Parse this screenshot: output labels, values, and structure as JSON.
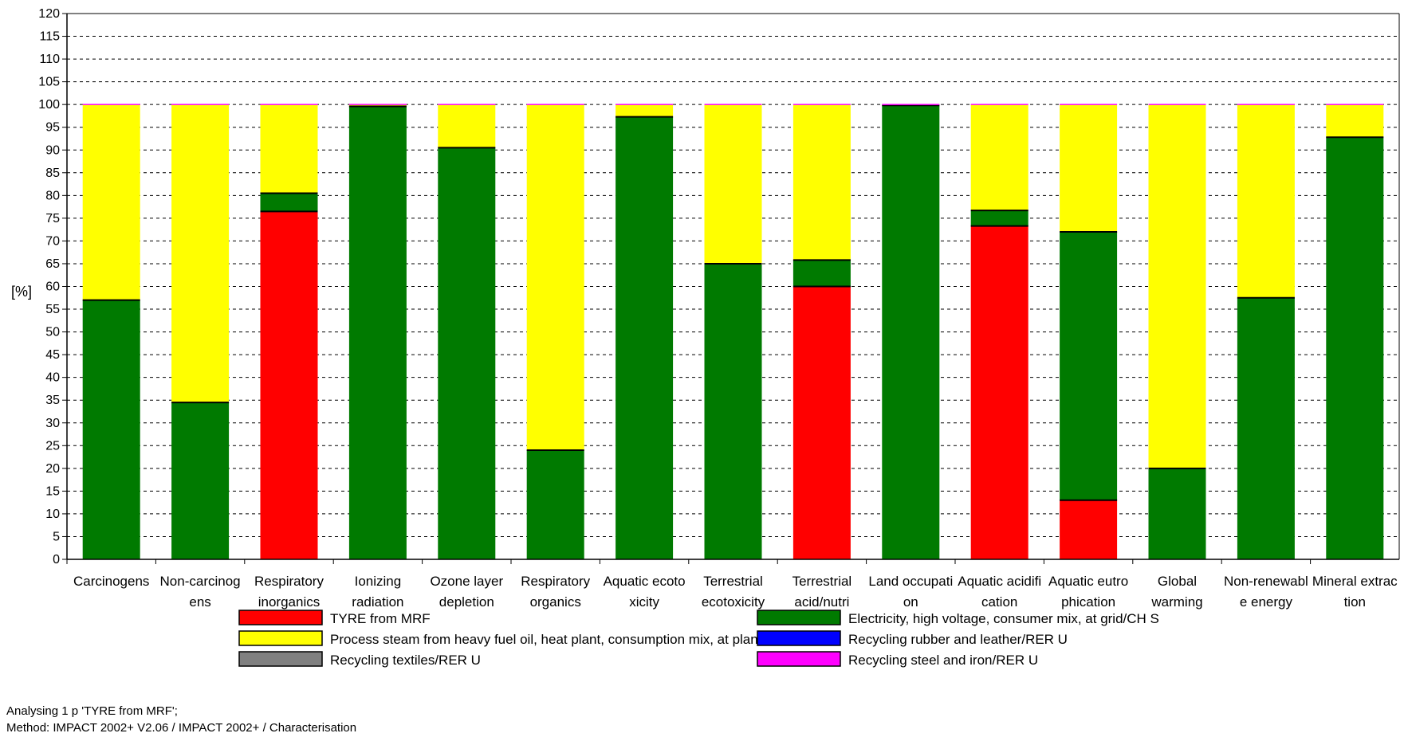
{
  "chart_data": {
    "type": "bar",
    "stacked": true,
    "ylabel": "[%]",
    "ylim": [
      0,
      120
    ],
    "ytick_step": 5,
    "grid": true,
    "legend_placement": "bottom",
    "categories": [
      [
        "Carcinogens",
        ""
      ],
      [
        "Non-carcinog",
        "ens"
      ],
      [
        "Respiratory",
        "inorganics"
      ],
      [
        "Ionizing",
        "radiation"
      ],
      [
        "Ozone layer",
        "depletion"
      ],
      [
        "Respiratory",
        "organics"
      ],
      [
        "Aquatic ecoto",
        "xicity"
      ],
      [
        "Terrestrial",
        "ecotoxicity"
      ],
      [
        "Terrestrial",
        "acid/nutri"
      ],
      [
        "Land occupati",
        "on"
      ],
      [
        "Aquatic acidifi",
        "cation"
      ],
      [
        "Aquatic eutro",
        "phication"
      ],
      [
        "Global",
        "warming"
      ],
      [
        "Non-renewabl",
        "e energy"
      ],
      [
        "Mineral extrac",
        "tion"
      ]
    ],
    "series": [
      {
        "name": "TYRE from MRF",
        "color": "#ff0000",
        "values": [
          0,
          0,
          76.5,
          0,
          0,
          0,
          0,
          0,
          60,
          0,
          73.3,
          13,
          0,
          0,
          0
        ]
      },
      {
        "name": "Electricity, high voltage, consumer mix, at grid/CH S",
        "color": "#007a00",
        "values": [
          57,
          34.5,
          4,
          99.6,
          90.5,
          24,
          97.3,
          65,
          5.8,
          99.8,
          3.4,
          59,
          20,
          57.5,
          92.8
        ]
      },
      {
        "name": "Process steam from heavy fuel oil, heat plant, consumption mix, at plant, MJ SK S",
        "color": "#ffff00",
        "values": [
          43,
          65.5,
          19.5,
          0.4,
          9.5,
          76,
          2.7,
          35,
          34.2,
          0.2,
          23.3,
          28,
          80,
          42.5,
          7.2
        ]
      },
      {
        "name": "Recycling rubber and leather/RER U",
        "color": "#0000ff",
        "values": [
          0,
          0,
          0,
          0,
          0,
          0,
          0,
          0,
          0,
          0,
          0,
          0,
          0,
          0,
          0
        ]
      },
      {
        "name": "Recycling textiles/RER U",
        "color": "#808080",
        "values": [
          0,
          0,
          0,
          0,
          0,
          0,
          0,
          0,
          0,
          0,
          0,
          0,
          0,
          0,
          0
        ]
      },
      {
        "name": "Recycling steel and iron/RER U",
        "color": "#ff00ff",
        "values": [
          0,
          0,
          0,
          0,
          0,
          0,
          0,
          0,
          0,
          0,
          0,
          0,
          0,
          0,
          0
        ]
      }
    ],
    "legend_order": [
      {
        "series": 0,
        "column": 0,
        "row": 0
      },
      {
        "series": 1,
        "column": 1,
        "row": 0
      },
      {
        "series": 2,
        "column": 0,
        "row": 1
      },
      {
        "series": 3,
        "column": 1,
        "row": 1
      },
      {
        "series": 4,
        "column": 0,
        "row": 2
      },
      {
        "series": 5,
        "column": 1,
        "row": 2
      }
    ]
  },
  "info": {
    "line1": "Analysing 1 p 'TYRE from MRF';",
    "line2": "Method: IMPACT 2002+ V2.06 / IMPACT 2002+ / Characterisation"
  }
}
